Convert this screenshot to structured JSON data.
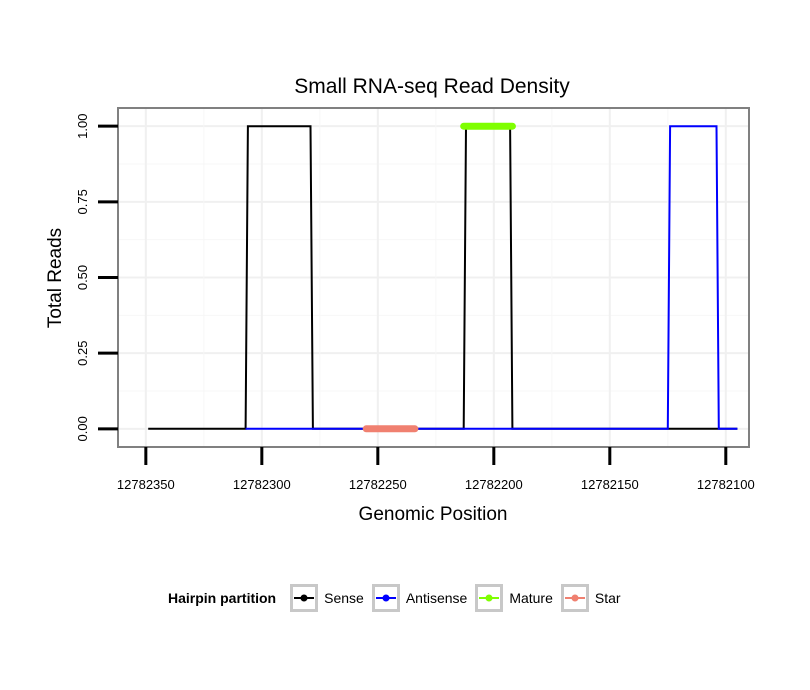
{
  "chart_data": {
    "type": "line",
    "title": "Small RNA-seq Read Density",
    "xlabel": "Genomic Position",
    "ylabel": "Total Reads",
    "x_reversed": true,
    "xlim": [
      12782362,
      12782090
    ],
    "ylim": [
      -0.06,
      1.06
    ],
    "x_ticks": [
      12782350,
      12782300,
      12782250,
      12782200,
      12782150,
      12782100
    ],
    "x_tick_labels": [
      "12782350",
      "12782300",
      "12782250",
      "12782200",
      "12782150",
      "12782100"
    ],
    "y_ticks": [
      0,
      0.25,
      0.5,
      0.75,
      1
    ],
    "y_tick_labels": [
      "0.00",
      "0.25",
      "0.50",
      "0.75",
      "1.00"
    ],
    "series": [
      {
        "name": "Sense",
        "color": "#000000",
        "width": 2,
        "points": [
          [
            12782349,
            0
          ],
          [
            12782307,
            0
          ],
          [
            12782306,
            1
          ],
          [
            12782279,
            1
          ],
          [
            12782278,
            0
          ],
          [
            12782213,
            0
          ],
          [
            12782212,
            1
          ],
          [
            12782193,
            1
          ],
          [
            12782192,
            0
          ],
          [
            12782095,
            0
          ]
        ]
      },
      {
        "name": "Antisense",
        "color": "#0000ff",
        "width": 2,
        "points": [
          [
            12782307,
            0
          ],
          [
            12782278,
            0
          ],
          [
            12782213,
            0
          ],
          [
            12782192,
            0
          ],
          [
            12782125,
            0
          ],
          [
            12782124,
            1
          ],
          [
            12782104,
            1
          ],
          [
            12782103,
            0
          ],
          [
            12782095,
            0
          ]
        ]
      },
      {
        "name": "Mature",
        "color": "#7fff00",
        "width": 7,
        "points": [
          [
            12782213,
            1
          ],
          [
            12782192,
            1
          ]
        ]
      },
      {
        "name": "Star",
        "color": "#f08070",
        "width": 7,
        "points": [
          [
            12782255,
            0
          ],
          [
            12782234,
            0
          ]
        ]
      }
    ],
    "legend": {
      "title": "Hairpin partition",
      "position": "bottom",
      "entries": [
        {
          "label": "Sense",
          "color": "#000000"
        },
        {
          "label": "Antisense",
          "color": "#0000ff"
        },
        {
          "label": "Mature",
          "color": "#7fff00"
        },
        {
          "label": "Star",
          "color": "#f08070"
        }
      ]
    },
    "grid": true
  }
}
